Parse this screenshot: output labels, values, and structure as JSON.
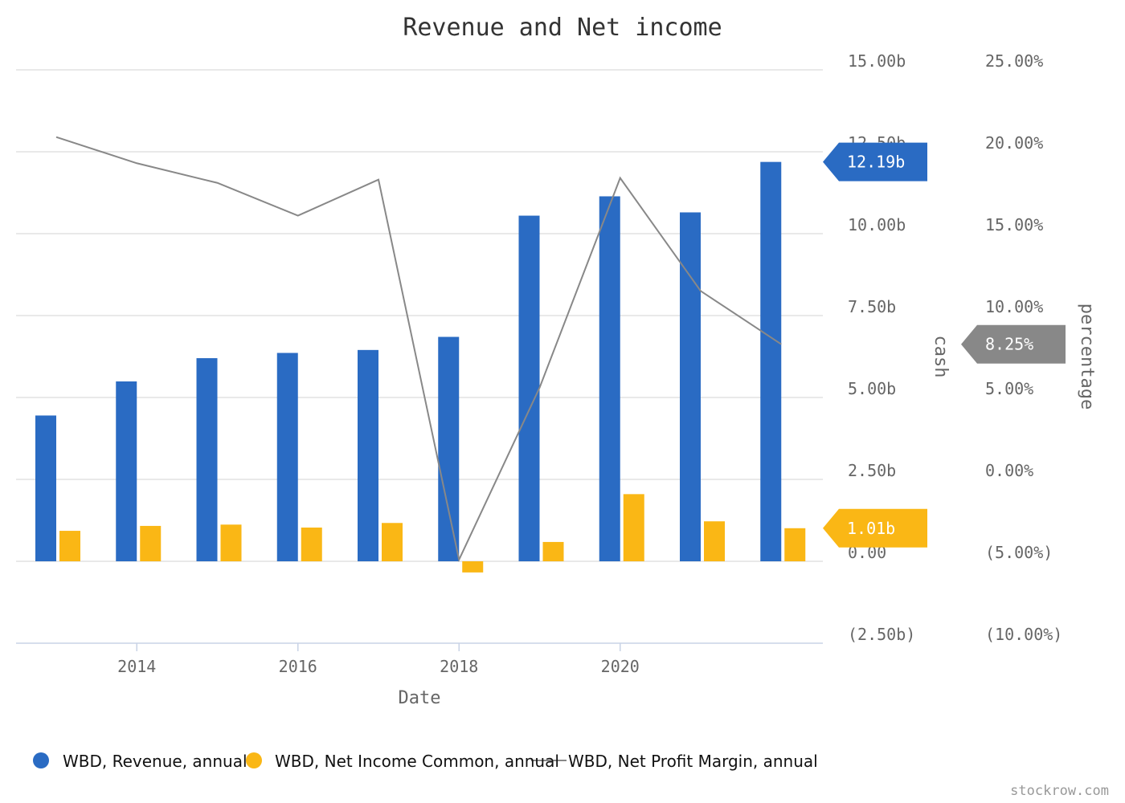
{
  "chart_data": {
    "type": "bar",
    "title": "Revenue and Net income",
    "xlabel": "Date",
    "ylabel_left": "cash",
    "ylabel_right": "percentage",
    "x": [
      2013,
      2014,
      2015,
      2016,
      2017,
      2018,
      2019,
      2020,
      2021,
      2022
    ],
    "x_ticks": [
      "2014",
      "2016",
      "2018",
      "2020"
    ],
    "y_left_ticks": [
      "15.00b",
      "12.50b",
      "10.00b",
      "7.50b",
      "5.00b",
      "2.50b",
      "0.00",
      "(2.50b)"
    ],
    "y_right_ticks": [
      "25.00%",
      "20.00%",
      "15.00%",
      "10.00%",
      "5.00%",
      "0.00%",
      "(5.00%)",
      "(10.00%)"
    ],
    "ylim_left": [
      -2.5,
      15
    ],
    "ylim_right": [
      -10,
      25
    ],
    "grid": true,
    "legend_position": "bottom",
    "series": [
      {
        "name": "WBD, Revenue, annual",
        "type": "bar",
        "axis": "left",
        "color": "#2a6bc3",
        "values": [
          4.45,
          5.49,
          6.2,
          6.36,
          6.45,
          6.85,
          10.55,
          11.14,
          10.65,
          12.19
        ]
      },
      {
        "name": "WBD, Net Income Common, annual",
        "type": "bar",
        "axis": "left",
        "color": "#fab715",
        "values": [
          0.93,
          1.08,
          1.12,
          1.03,
          1.17,
          -0.34,
          0.59,
          2.05,
          1.22,
          1.01
        ]
      },
      {
        "name": "WBD, Net Profit Margin, annual",
        "type": "line",
        "axis": "right",
        "color": "#888888",
        "values": [
          20.9,
          19.3,
          18.1,
          16.1,
          18.3,
          -4.9,
          5.6,
          18.4,
          11.5,
          8.25
        ]
      }
    ],
    "last_value_flags": [
      {
        "text": "12.19b",
        "value": 12.19,
        "axis": "left",
        "color": "#2a6bc3"
      },
      {
        "text": "1.01b",
        "value": 1.01,
        "axis": "left",
        "color": "#fab715"
      },
      {
        "text": "8.25%",
        "value": 8.25,
        "axis": "right",
        "color": "#888888"
      }
    ]
  },
  "credit": "stockrow.com"
}
